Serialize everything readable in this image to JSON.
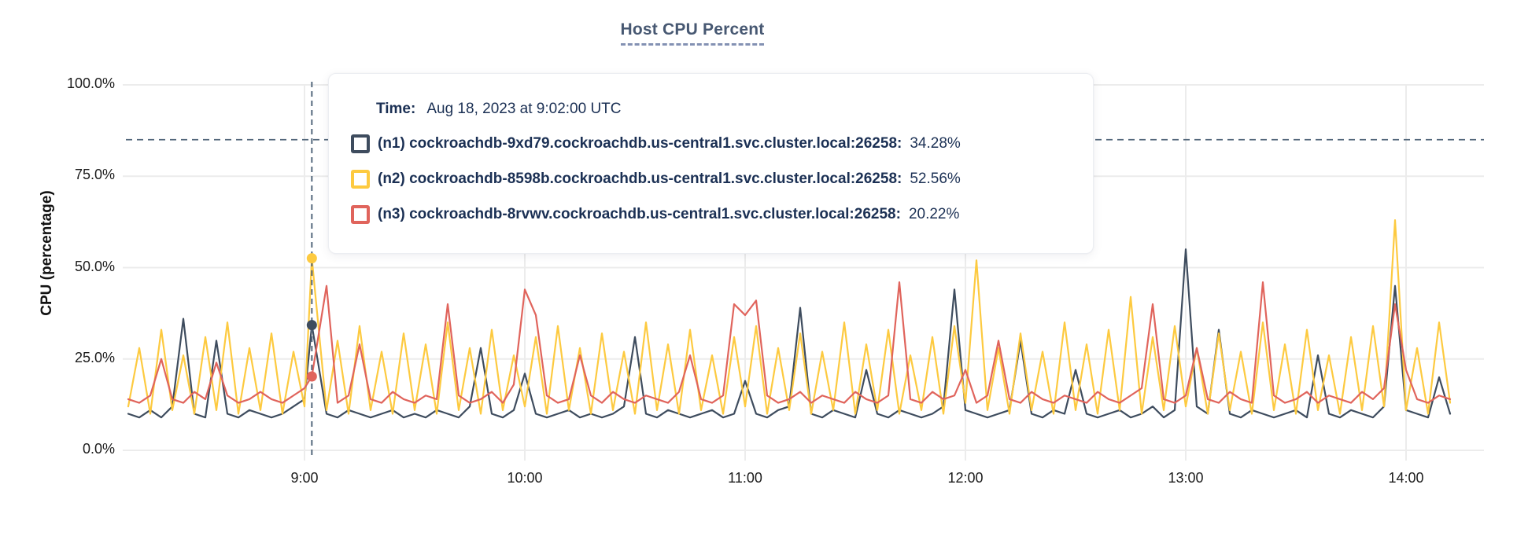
{
  "title": "Host CPU Percent",
  "colors": {
    "title": "#475872",
    "grid": "#ececec",
    "dashed": "#54687c",
    "axis_text": "#1c1c1c",
    "tooltip_text": "#1b3054",
    "series_n1": "#3e4c5e",
    "series_n2": "#fdca40",
    "series_n3": "#e0645c"
  },
  "tooltip": {
    "time_label": "Time:",
    "time_value": "Aug 18, 2023 at 9:02:00 UTC",
    "series": [
      {
        "name": "(n1) cockroachdb-9xd79.cockroachdb.us-central1.svc.cluster.local:26258:",
        "value": "34.28%",
        "color": "#3e4c5e"
      },
      {
        "name": "(n2) cockroachdb-8598b.cockroachdb.us-central1.svc.cluster.local:26258:",
        "value": "52.56%",
        "color": "#fdca40"
      },
      {
        "name": "(n3) cockroachdb-8rvwv.cockroachdb.us-central1.svc.cluster.local:26258:",
        "value": "20.22%",
        "color": "#e0645c"
      }
    ]
  },
  "chart_data": {
    "type": "line",
    "title": "Host CPU Percent",
    "xlabel": "",
    "ylabel": "CPU (percentage)",
    "x_unit": "minutes after 08:00 UTC, Aug 18, 2023",
    "ylim": [
      0,
      100
    ],
    "grid": true,
    "legend_position": "hover-tooltip",
    "threshold_percent": 85,
    "y_ticks": [
      {
        "value": 0,
        "label": "0.0%"
      },
      {
        "value": 25,
        "label": "25.0%"
      },
      {
        "value": 50,
        "label": "50.0%"
      },
      {
        "value": 75,
        "label": "75.0%"
      },
      {
        "value": 100,
        "label": "100.0%"
      }
    ],
    "x_ticks": [
      {
        "minute": 60,
        "label": "9:00"
      },
      {
        "minute": 120,
        "label": "10:00"
      },
      {
        "minute": 180,
        "label": "11:00"
      },
      {
        "minute": 240,
        "label": "12:00"
      },
      {
        "minute": 300,
        "label": "13:00"
      },
      {
        "minute": 360,
        "label": "14:00"
      }
    ],
    "hover": {
      "minute": 62,
      "time": "Aug 18, 2023 at 9:02:00 UTC",
      "points": [
        {
          "series": "n2",
          "value": 52.56,
          "color": "#fdca40"
        },
        {
          "series": "n1",
          "value": 34.28,
          "color": "#3e4c5e"
        },
        {
          "series": "n3",
          "value": 20.22,
          "color": "#e0645c"
        }
      ]
    },
    "x": [
      12,
      15,
      18,
      21,
      24,
      27,
      30,
      33,
      36,
      39,
      42,
      45,
      48,
      51,
      54,
      57,
      60,
      62,
      66,
      69,
      72,
      75,
      78,
      81,
      84,
      87,
      90,
      93,
      96,
      99,
      102,
      105,
      108,
      111,
      114,
      117,
      120,
      123,
      126,
      129,
      132,
      135,
      138,
      141,
      144,
      147,
      150,
      153,
      156,
      159,
      162,
      165,
      168,
      171,
      174,
      177,
      180,
      183,
      186,
      189,
      192,
      195,
      198,
      201,
      204,
      207,
      210,
      213,
      216,
      219,
      222,
      225,
      228,
      231,
      234,
      237,
      240,
      243,
      246,
      249,
      252,
      255,
      258,
      261,
      264,
      267,
      270,
      273,
      276,
      279,
      282,
      285,
      288,
      291,
      294,
      297,
      300,
      303,
      306,
      309,
      312,
      315,
      318,
      321,
      324,
      327,
      330,
      333,
      336,
      339,
      342,
      345,
      348,
      351,
      354,
      357,
      360,
      363,
      366,
      369,
      372
    ],
    "series": [
      {
        "node": "n1",
        "name": "cockroachdb-9xd79.cockroachdb.us-central1.svc.cluster.local:26258",
        "color": "#3e4c5e",
        "values": [
          10,
          9,
          11,
          9,
          12,
          36,
          10,
          9,
          30,
          10,
          9,
          11,
          10,
          9,
          10,
          12,
          14,
          34.28,
          10,
          9,
          11,
          10,
          9,
          10,
          11,
          9,
          10,
          9,
          11,
          10,
          9,
          12,
          28,
          10,
          9,
          11,
          21,
          10,
          9,
          10,
          11,
          9,
          10,
          9,
          10,
          12,
          31,
          10,
          9,
          11,
          10,
          9,
          10,
          11,
          9,
          10,
          19,
          10,
          9,
          11,
          12,
          39,
          10,
          9,
          11,
          10,
          9,
          22,
          10,
          9,
          11,
          10,
          9,
          10,
          12,
          44,
          11,
          10,
          9,
          10,
          11,
          30,
          10,
          9,
          11,
          10,
          22,
          10,
          9,
          10,
          11,
          9,
          10,
          12,
          9,
          11,
          55,
          12,
          10,
          33,
          10,
          9,
          11,
          10,
          9,
          10,
          11,
          9,
          26,
          10,
          9,
          11,
          10,
          9,
          12,
          45,
          11,
          10,
          9,
          20,
          10
        ]
      },
      {
        "node": "n2",
        "name": "cockroachdb-8598b.cockroachdb.us-central1.svc.cluster.local:26258",
        "color": "#fdca40",
        "values": [
          12,
          28,
          10,
          33,
          11,
          26,
          10,
          31,
          11,
          35,
          10,
          28,
          11,
          32,
          10,
          27,
          12,
          52.56,
          11,
          30,
          10,
          34,
          11,
          27,
          10,
          32,
          11,
          29,
          10,
          35,
          11,
          28,
          10,
          33,
          11,
          26,
          12,
          31,
          10,
          34,
          11,
          28,
          10,
          32,
          11,
          27,
          10,
          35,
          11,
          29,
          10,
          33,
          11,
          26,
          10,
          31,
          12,
          34,
          10,
          28,
          11,
          32,
          10,
          27,
          11,
          35,
          10,
          29,
          11,
          33,
          10,
          26,
          11,
          31,
          10,
          34,
          13,
          52,
          11,
          28,
          10,
          32,
          11,
          27,
          10,
          35,
          11,
          29,
          10,
          33,
          11,
          42,
          10,
          31,
          11,
          34,
          12,
          28,
          10,
          32,
          11,
          27,
          10,
          35,
          11,
          29,
          10,
          33,
          11,
          26,
          10,
          31,
          11,
          34,
          12,
          63,
          11,
          28,
          10,
          35,
          13
        ]
      },
      {
        "node": "n3",
        "name": "cockroachdb-8rvwv.cockroachdb.us-central1.svc.cluster.local:26258",
        "color": "#e0645c",
        "values": [
          14,
          13,
          15,
          25,
          14,
          13,
          16,
          14,
          24,
          15,
          13,
          14,
          16,
          14,
          13,
          15,
          17,
          20.22,
          45,
          13,
          15,
          29,
          14,
          13,
          16,
          14,
          13,
          15,
          14,
          40,
          15,
          13,
          14,
          16,
          13,
          18,
          44,
          37,
          15,
          13,
          14,
          26,
          15,
          13,
          16,
          14,
          13,
          15,
          14,
          13,
          16,
          26,
          14,
          13,
          15,
          40,
          37,
          41,
          15,
          13,
          14,
          16,
          13,
          15,
          14,
          13,
          16,
          14,
          13,
          15,
          46,
          14,
          13,
          16,
          14,
          15,
          22,
          13,
          15,
          30,
          14,
          13,
          16,
          14,
          13,
          15,
          14,
          13,
          16,
          14,
          13,
          15,
          17,
          40,
          14,
          13,
          15,
          28,
          14,
          13,
          16,
          14,
          13,
          46,
          15,
          13,
          14,
          16,
          13,
          15,
          14,
          13,
          16,
          14,
          17,
          40,
          22,
          14,
          13,
          15,
          14
        ]
      }
    ]
  }
}
